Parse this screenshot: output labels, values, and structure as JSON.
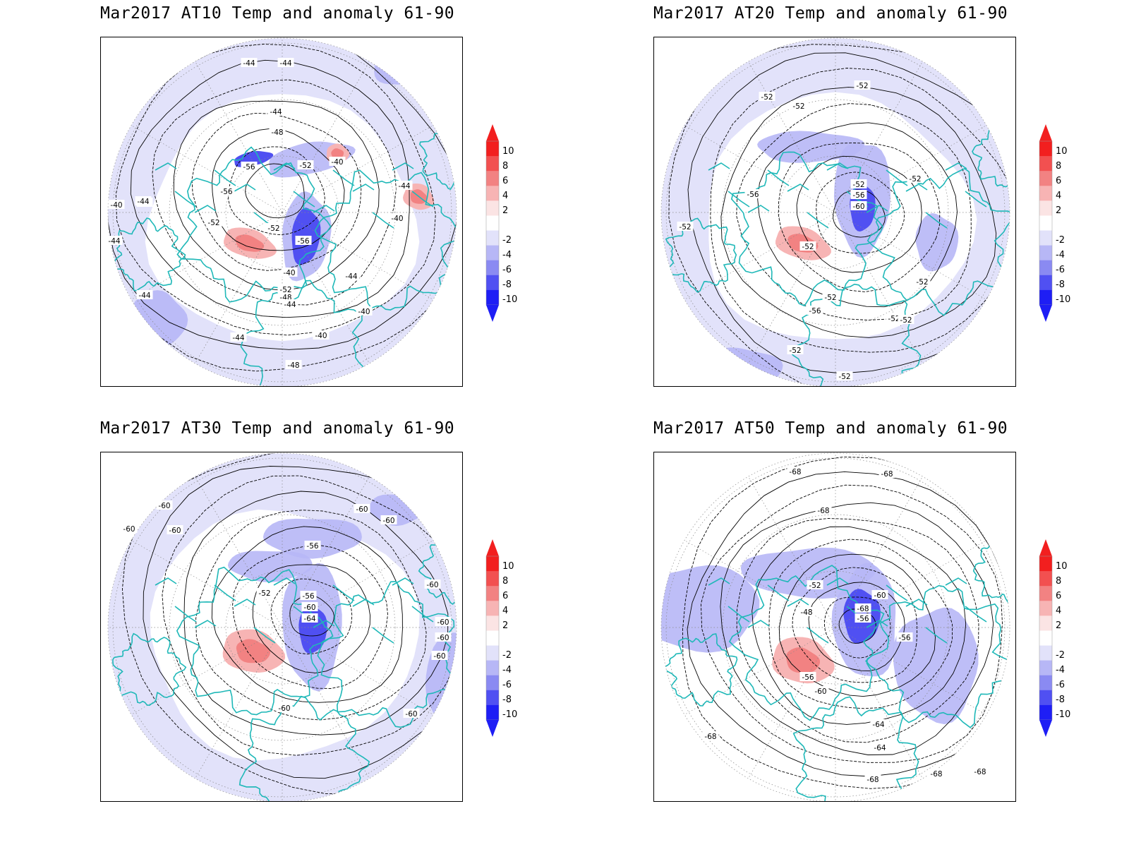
{
  "panels": [
    {
      "title": "Mar2017 AT10 Temp and anomaly 61-90",
      "contour_labels": [
        "-44",
        "-44",
        "-44",
        "-48",
        "-56",
        "-52",
        "-56",
        "-40",
        "-40",
        "-40",
        "-44",
        "-52",
        "-52",
        "-56",
        "-40",
        "-44",
        "-52",
        "-48",
        "-44",
        "-40",
        "-40",
        "-40",
        "-44",
        "-44",
        "-44",
        "-48",
        "-44"
      ]
    },
    {
      "title": "Mar2017 AT20 Temp and anomaly 61-90",
      "contour_labels": [
        "-52",
        "-52",
        "-52",
        "-52",
        "-56",
        "-52",
        "-56",
        "-60",
        "-52",
        "-52",
        "-52",
        "-56",
        "-52",
        "-52",
        "-52",
        "-52",
        "-52"
      ]
    },
    {
      "title": "Mar2017 AT30 Temp and anomaly 61-90",
      "contour_labels": [
        "-60",
        "-60",
        "-60",
        "-60",
        "-60",
        "-56",
        "-52",
        "-56",
        "-60",
        "-64",
        "-60",
        "-60",
        "-60",
        "-60",
        "-60",
        "-60",
        "-60"
      ]
    },
    {
      "title": "Mar2017 AT50 Temp and anomaly 61-90",
      "contour_labels": [
        "-68",
        "-68",
        "-68",
        "-52",
        "-48",
        "-56",
        "-64",
        "-68",
        "-56",
        "-60",
        "-56",
        "-60",
        "-64",
        "-68",
        "-68",
        "-68",
        "-68",
        "-68"
      ]
    }
  ],
  "colorbar": {
    "ticks": [
      "10",
      "8",
      "6",
      "4",
      "2",
      "-2",
      "-4",
      "-6",
      "-8",
      "-10"
    ],
    "colors": [
      "#f21f1f",
      "#f25050",
      "#f28282",
      "#f7b4b4",
      "#fbe4e4",
      "#ffffff",
      "#e2e2fa",
      "#b7b7f6",
      "#8a8af2",
      "#5050f2",
      "#1e1ef5"
    ],
    "arrow_top_color": "#f21f1f",
    "arrow_bottom_color": "#1e1ef5"
  }
}
